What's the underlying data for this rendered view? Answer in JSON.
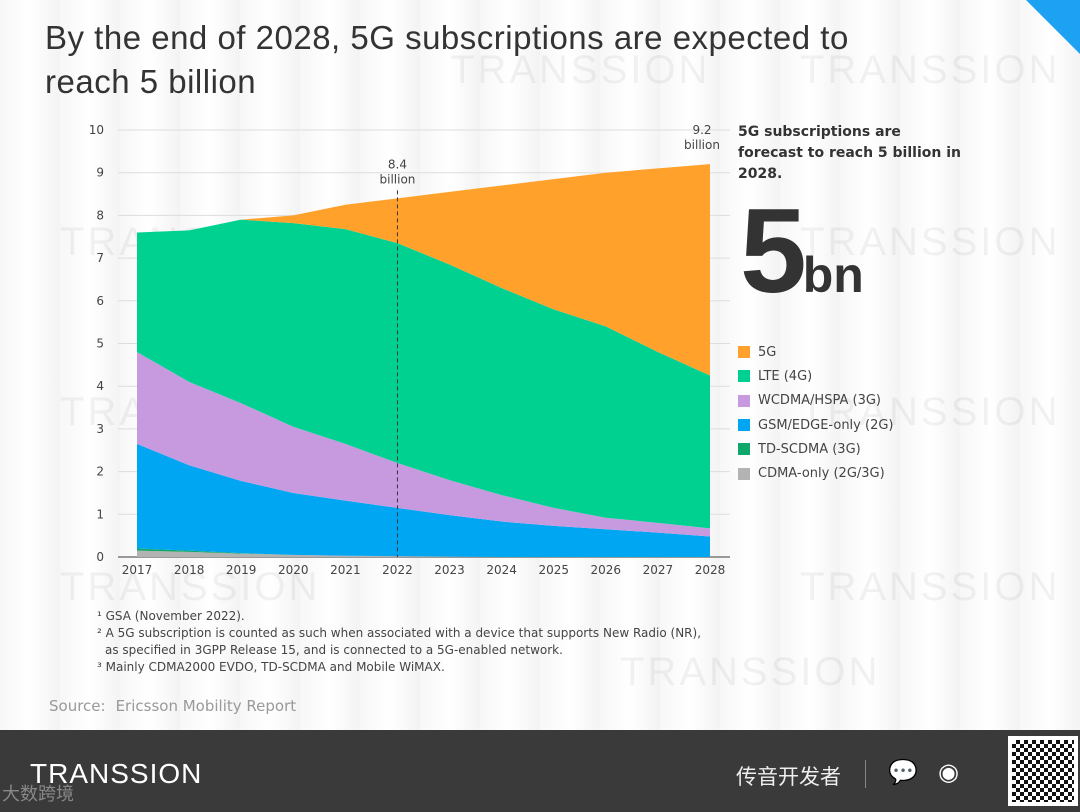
{
  "title": "By the end of 2028, 5G subscriptions are expected to reach 5 billion",
  "watermark": "TRANSSION",
  "side_note": "5G subscriptions are forecast to reach 5 billion in 2028.",
  "big_number": "5",
  "big_unit": "bn",
  "chart_data": {
    "type": "area",
    "stacked": true,
    "x": [
      "2017",
      "2018",
      "2019",
      "2020",
      "2021",
      "2022",
      "2023",
      "2024",
      "2025",
      "2026",
      "2027",
      "2028"
    ],
    "ylim": [
      0,
      10
    ],
    "yticks": [
      "0",
      "1",
      "2",
      "3",
      "4",
      "5",
      "6",
      "7",
      "8",
      "9",
      "10"
    ],
    "grid": true,
    "unit": "billion",
    "series": [
      {
        "name": "CDMA-only (2G/3G)",
        "color": "#b3b3b3",
        "values": [
          0.15,
          0.12,
          0.08,
          0.05,
          0.03,
          0.02,
          0.01,
          0,
          0,
          0,
          0,
          0
        ]
      },
      {
        "name": "TD-SCDMA (3G)",
        "color": "#0fa86a",
        "values": [
          0.05,
          0.03,
          0.01,
          0,
          0,
          0,
          0,
          0,
          0,
          0,
          0,
          0
        ]
      },
      {
        "name": "GSM/EDGE-only (2G)",
        "color": "#00a6f2",
        "values": [
          2.45,
          2.0,
          1.69,
          1.45,
          1.29,
          1.13,
          0.97,
          0.83,
          0.73,
          0.65,
          0.57,
          0.48
        ]
      },
      {
        "name": "WCDMA/HSPA (3G)",
        "color": "#c79ae0",
        "values": [
          2.15,
          1.95,
          1.82,
          1.55,
          1.33,
          1.05,
          0.82,
          0.62,
          0.42,
          0.27,
          0.23,
          0.19
        ]
      },
      {
        "name": "LTE (4G)",
        "color": "#00d191",
        "values": [
          2.8,
          3.55,
          4.3,
          4.77,
          5.03,
          5.15,
          5.05,
          4.85,
          4.65,
          4.48,
          4.0,
          3.58
        ]
      },
      {
        "name": "5G",
        "color": "#ffa12b",
        "values": [
          0,
          0,
          0,
          0.18,
          0.57,
          1.05,
          1.7,
          2.4,
          3.05,
          3.6,
          4.3,
          4.95
        ]
      }
    ],
    "legend_order": [
      "5G",
      "LTE (4G)",
      "WCDMA/HSPA (3G)",
      "GSM/EDGE-only (2G)",
      "TD-SCDMA (3G)",
      "CDMA-only (2G/3G)"
    ],
    "annotations": [
      {
        "x": "2022",
        "value": "8.4",
        "unit": "billion",
        "dashed_line": true
      },
      {
        "x": "2028",
        "value": "9.2",
        "unit": "billion"
      }
    ]
  },
  "footnotes": [
    "¹ GSA (November 2022).",
    "² A 5G subscription is counted as such when associated with a device that supports New Radio (NR),",
    "  as specified in 3GPP Release 15, and is connected to a 5G-enabled network.",
    "³ Mainly CDMA2000 EVDO, TD-SCDMA and Mobile WiMAX."
  ],
  "source_label": "Source:",
  "source": "Ericsson Mobility Report",
  "footer": {
    "logo": "TRANSSION",
    "overlay": "大数跨境",
    "account": "传音开发者",
    "wechat_icon": "wechat-icon",
    "weibo_icon": "weibo-icon"
  }
}
